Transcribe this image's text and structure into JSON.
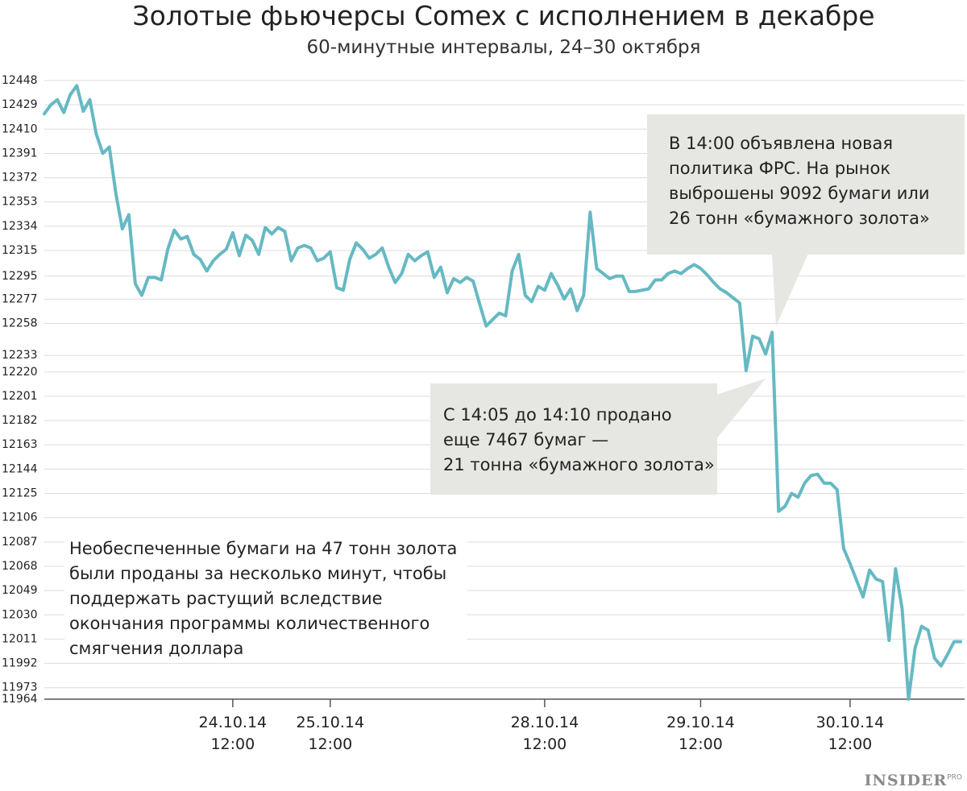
{
  "chart_data": {
    "type": "line",
    "title": "Золотые фьючерсы Comex с исполнением в декабре",
    "subtitle": "60-минутные интервалы, 24–30 октября",
    "categories": [
      null,
      null,
      null,
      null,
      null,
      null,
      null,
      null,
      null,
      null,
      null,
      null,
      null,
      null,
      null,
      null,
      null,
      null,
      null,
      null,
      null,
      null,
      null,
      null,
      null,
      null,
      null,
      null,
      null,
      "24.10.14\n12:00",
      null,
      null,
      null,
      null,
      null,
      null,
      null,
      null,
      null,
      null,
      null,
      null,
      null,
      null,
      "25.10.14\n12:00",
      null,
      null,
      null,
      null,
      null,
      null,
      null,
      null,
      null,
      null,
      null,
      null,
      null,
      null,
      null,
      null,
      null,
      null,
      null,
      null,
      null,
      null,
      null,
      null,
      null,
      null,
      null,
      null,
      null,
      null,
      null,
      null,
      "28.10.14\n12:00",
      null,
      null,
      null,
      null,
      null,
      null,
      null,
      null,
      null,
      null,
      null,
      null,
      null,
      null,
      null,
      null,
      null,
      null,
      null,
      null,
      null,
      null,
      null,
      "29.10.14\n12:00",
      null,
      null,
      null,
      null,
      null,
      null,
      null,
      null,
      null,
      null,
      null,
      null,
      null,
      null,
      null,
      null,
      null,
      null,
      null,
      null,
      null,
      null,
      "30.10.14\n12:00",
      null,
      null,
      null,
      null,
      null,
      null,
      null,
      null,
      null,
      null,
      null,
      null,
      null,
      null,
      null,
      null,
      null
    ],
    "values": [
      12422,
      12429,
      12433,
      12423,
      12437,
      12444,
      12424,
      12433,
      12406,
      12391,
      12396,
      12360,
      12332,
      12343,
      12289,
      12280,
      12294,
      12294,
      12292,
      12316,
      12331,
      12324,
      12326,
      12312,
      12308,
      12299,
      12307,
      12312,
      12316,
      12329,
      12311,
      12327,
      12323,
      12312,
      12333,
      12328,
      12333,
      12330,
      12307,
      12317,
      12319,
      12317,
      12307,
      12309,
      12314,
      12286,
      12284,
      12308,
      12321,
      12316,
      12309,
      12312,
      12317,
      12302,
      12290,
      12297,
      12312,
      12307,
      12311,
      12314,
      12294,
      12302,
      12282,
      12293,
      12290,
      12294,
      12291,
      12273,
      12256,
      12261,
      12266,
      12264,
      12299,
      12312,
      12280,
      12275,
      12287,
      12284,
      12297,
      12288,
      12277,
      12285,
      12268,
      12280,
      12345,
      12301,
      12297,
      12293,
      12295,
      12295,
      12283,
      12283,
      12284,
      12285,
      12292,
      12292,
      12297,
      12299,
      12297,
      12301,
      12304,
      12301,
      12296,
      12290,
      12285,
      12282,
      12278,
      12274,
      12221,
      12248,
      12246,
      12234,
      12251,
      12111,
      12115,
      12125,
      12122,
      12133,
      12139,
      12140,
      12133,
      12133,
      12128,
      12082,
      12070,
      12057,
      12044,
      12065,
      12058,
      12056,
      12010,
      12066,
      12035,
      11964,
      12004,
      12021,
      12018,
      11996,
      11990,
      11999,
      12009,
      12009
    ],
    "color": "#66b9c3",
    "ylim": [
      11964,
      12448
    ],
    "yticks": [
      12448,
      12429,
      12410,
      12391,
      12372,
      12353,
      12334,
      12315,
      12295,
      12277,
      12258,
      12233,
      12220,
      12201,
      12182,
      12163,
      12144,
      12125,
      12106,
      12087,
      12068,
      12049,
      12030,
      12011,
      11992,
      11973,
      11964
    ],
    "grid": true,
    "annotations": [
      "В 14:00 объявлена новая\nполитика ФРС. На рынок\nвыброшены 9092 бумаги или\n26 тонн «бумажного золота»",
      "С 14:05 до 14:10 продано\nеще 7467 бумаг —\n21 тонна «бумажного золота»",
      "Необеспеченные бумаги на 47 тонн золота\nбыли проданы за несколько минут, чтобы\nподдержать растущий вследствие\nокончания программы количественного\nсмягчения доллара"
    ],
    "logo": {
      "text": "INSIDER",
      "sup": "PRO"
    }
  }
}
